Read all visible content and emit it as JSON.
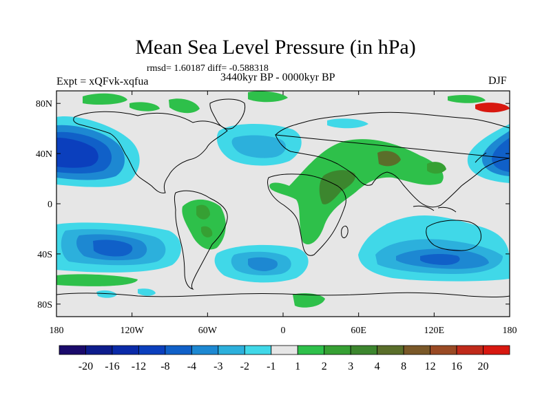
{
  "title": "Mean Sea Level Pressure (in hPa)",
  "stats": "rmsd= 1.60187 diff= -0.588318",
  "expt": "Expt = xQFvk-xqfua",
  "period": "3440kyr BP - 0000kyr BP",
  "season": "DJF",
  "lat_ticks": [
    {
      "label": "80N",
      "lat": 80
    },
    {
      "label": "40N",
      "lat": 40
    },
    {
      "label": "0",
      "lat": 0
    },
    {
      "label": "40S",
      "lat": -40
    },
    {
      "label": "80S",
      "lat": -80
    }
  ],
  "lon_ticks": [
    {
      "label": "180",
      "lon": -180
    },
    {
      "label": "120W",
      "lon": -120
    },
    {
      "label": "60W",
      "lon": -60
    },
    {
      "label": "0",
      "lon": 0
    },
    {
      "label": "60E",
      "lon": 60
    },
    {
      "label": "120E",
      "lon": 120
    },
    {
      "label": "180",
      "lon": 180
    }
  ],
  "colorbar": {
    "colors": [
      "#1a0a6b",
      "#0d1c8c",
      "#0a2aa8",
      "#0b3fbd",
      "#1060c8",
      "#1d88d2",
      "#2cb0dc",
      "#40d8e8",
      "#e6e6e6",
      "#2ec04a",
      "#36a033",
      "#3c862e",
      "#5a6e2a",
      "#7a5828",
      "#9a4a24",
      "#c02a1a",
      "#d81810"
    ],
    "labels": [
      "-20",
      "-16",
      "-12",
      "-8",
      "-4",
      "-3",
      "-2",
      "-1",
      "1",
      "2",
      "3",
      "4",
      "8",
      "12",
      "16",
      "20"
    ]
  },
  "legend_fill": {
    "neutral": "#e6e6e6",
    "light_blue": "#40d8e8",
    "mid_blue": "#2cb0dc",
    "blue": "#1d88d2",
    "dark_blue": "#1060c8",
    "green": "#2ec04a",
    "mid_green": "#36a033",
    "olive": "#5a6e2a"
  }
}
